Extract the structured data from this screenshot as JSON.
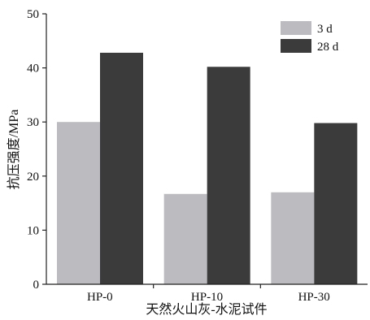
{
  "chart_data": {
    "type": "bar",
    "title": "",
    "xlabel": "天然火山灰-水泥试件",
    "ylabel": "抗压强度/MPa",
    "categories": [
      "HP-0",
      "HP-10",
      "HP-30"
    ],
    "series": [
      {
        "name": "3 d",
        "values": [
          30.0,
          16.7,
          17.0
        ],
        "color": "#bcbcc0"
      },
      {
        "name": "28 d",
        "values": [
          42.8,
          40.2,
          29.8
        ],
        "color": "#3b3b3b"
      }
    ],
    "ylim": [
      0,
      50
    ],
    "yticks": [
      "0",
      "10",
      "20",
      "30",
      "40",
      "50"
    ],
    "grid": false,
    "legend_position": "top-right"
  }
}
